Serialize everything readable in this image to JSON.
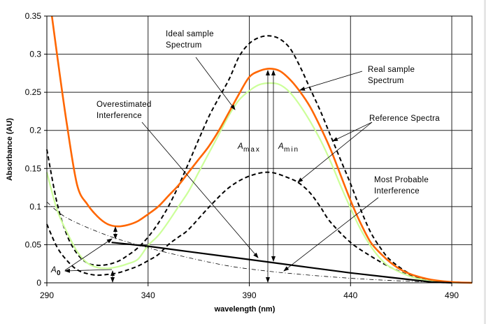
{
  "chart_data": {
    "type": "line",
    "title": "",
    "xlabel": "wavelength (nm)",
    "ylabel": "Absorbance (AU)",
    "xlim": [
      290,
      500
    ],
    "ylim": [
      0,
      0.35
    ],
    "xticks": [
      290,
      340,
      390,
      440,
      490
    ],
    "yticks": [
      0,
      0.05,
      0.1,
      0.15,
      0.2,
      0.25,
      0.3,
      0.35
    ],
    "ytick_labels": [
      "0",
      "0.05",
      "0.1",
      "0.15",
      "0.2",
      "0.25",
      "0.3",
      "0.35"
    ],
    "grid": true,
    "legend": "none",
    "series": [
      {
        "id": "real-sample",
        "color": "#ff6600",
        "style": "solid",
        "x": [
          292.5,
          295,
          300,
          305,
          310,
          315,
          320,
          325,
          330,
          335,
          340,
          345,
          350,
          355,
          360,
          365,
          370,
          375,
          380,
          385,
          390,
          395,
          400,
          405,
          410,
          415,
          420,
          425,
          430,
          435,
          440,
          445,
          450,
          455,
          460,
          465,
          470,
          475,
          480,
          490,
          500
        ],
        "y": [
          0.35,
          0.3,
          0.206,
          0.128,
          0.103,
          0.087,
          0.077,
          0.074,
          0.076,
          0.081,
          0.09,
          0.1,
          0.114,
          0.128,
          0.145,
          0.162,
          0.179,
          0.2,
          0.224,
          0.248,
          0.27,
          0.278,
          0.281,
          0.278,
          0.267,
          0.251,
          0.231,
          0.205,
          0.176,
          0.142,
          0.108,
          0.078,
          0.053,
          0.038,
          0.026,
          0.017,
          0.011,
          0.007,
          0.004,
          0.001,
          0.0
        ]
      },
      {
        "id": "estimated-sample",
        "color": "#ccff99",
        "style": "solid",
        "x": [
          290,
          295,
          300,
          305,
          310,
          315,
          320,
          325,
          330,
          335,
          340,
          345,
          350,
          355,
          360,
          365,
          370,
          375,
          380,
          385,
          390,
          395,
          400,
          405,
          410,
          415,
          420,
          425,
          430,
          435,
          440,
          445,
          450,
          455,
          460,
          470,
          480,
          490,
          500
        ],
        "y": [
          0.145,
          0.096,
          0.066,
          0.041,
          0.026,
          0.02,
          0.019,
          0.021,
          0.025,
          0.031,
          0.049,
          0.062,
          0.08,
          0.1,
          0.12,
          0.145,
          0.17,
          0.195,
          0.22,
          0.24,
          0.252,
          0.26,
          0.262,
          0.26,
          0.25,
          0.233,
          0.212,
          0.188,
          0.16,
          0.128,
          0.098,
          0.07,
          0.048,
          0.031,
          0.02,
          0.008,
          0.002,
          0.0005,
          0.0
        ]
      },
      {
        "id": "ideal-sample",
        "color": "#000000",
        "style": "dashed",
        "x": [
          290,
          295,
          300,
          305,
          310,
          315,
          320,
          325,
          330,
          335,
          340,
          345,
          350,
          355,
          360,
          365,
          370,
          375,
          380,
          385,
          390,
          395,
          400,
          405,
          410,
          415,
          420,
          425,
          430,
          435,
          440,
          445,
          450,
          455,
          460,
          470,
          480,
          490,
          500
        ],
        "y": [
          0.175,
          0.105,
          0.062,
          0.038,
          0.026,
          0.023,
          0.024,
          0.028,
          0.036,
          0.046,
          0.06,
          0.078,
          0.1,
          0.127,
          0.157,
          0.188,
          0.218,
          0.243,
          0.267,
          0.297,
          0.314,
          0.322,
          0.324,
          0.32,
          0.308,
          0.284,
          0.255,
          0.226,
          0.194,
          0.162,
          0.13,
          0.096,
          0.066,
          0.045,
          0.029,
          0.011,
          0.004,
          0.001,
          0.0
        ]
      },
      {
        "id": "reference-low",
        "color": "#000000",
        "style": "dashed",
        "x": [
          290,
          295,
          300,
          305,
          310,
          315,
          320,
          325,
          330,
          335,
          340,
          345,
          350,
          355,
          360,
          370,
          380,
          390,
          400,
          410,
          415,
          420,
          425,
          430,
          440,
          450,
          460,
          470,
          480,
          490,
          500
        ],
        "y": [
          0.077,
          0.047,
          0.029,
          0.017,
          0.012,
          0.01,
          0.011,
          0.013,
          0.017,
          0.022,
          0.029,
          0.037,
          0.05,
          0.06,
          0.07,
          0.099,
          0.125,
          0.14,
          0.145,
          0.137,
          0.13,
          0.118,
          0.1,
          0.08,
          0.053,
          0.035,
          0.02,
          0.009,
          0.003,
          0.001,
          0.0
        ]
      },
      {
        "id": "most-probable-interference",
        "color": "#000000",
        "style": "dashdot",
        "x": [
          290,
          300,
          320,
          340,
          360,
          380,
          400,
          420,
          440,
          460,
          480,
          500
        ],
        "y": [
          0.106,
          0.085,
          0.062,
          0.046,
          0.033,
          0.022,
          0.015,
          0.01,
          0.006,
          0.003,
          0.001,
          0.0
        ]
      },
      {
        "id": "overestimated-interference",
        "color": "#000000",
        "style": "solid-thick",
        "x": [
          322,
          340,
          360,
          380,
          400,
          420,
          440,
          460,
          480,
          490
        ],
        "y": [
          0.053,
          0.048,
          0.041,
          0.034,
          0.027,
          0.02,
          0.013,
          0.007,
          0.001,
          0.0
        ]
      }
    ],
    "annotations": {
      "ideal_sample": [
        "Ideal sample",
        "Spectrum"
      ],
      "real_sample": [
        "Real sample",
        "Spectrum"
      ],
      "reference": [
        "Reference Spectra"
      ],
      "overestimated": [
        "Overestimated",
        "Interference"
      ],
      "most_probable": [
        "Most Probable",
        "Interference"
      ],
      "a_max": {
        "main": "A",
        "sub": "max"
      },
      "a_min": {
        "main": "A",
        "sub": "min"
      },
      "a_0": {
        "main": "A",
        "sub": "0"
      }
    }
  }
}
